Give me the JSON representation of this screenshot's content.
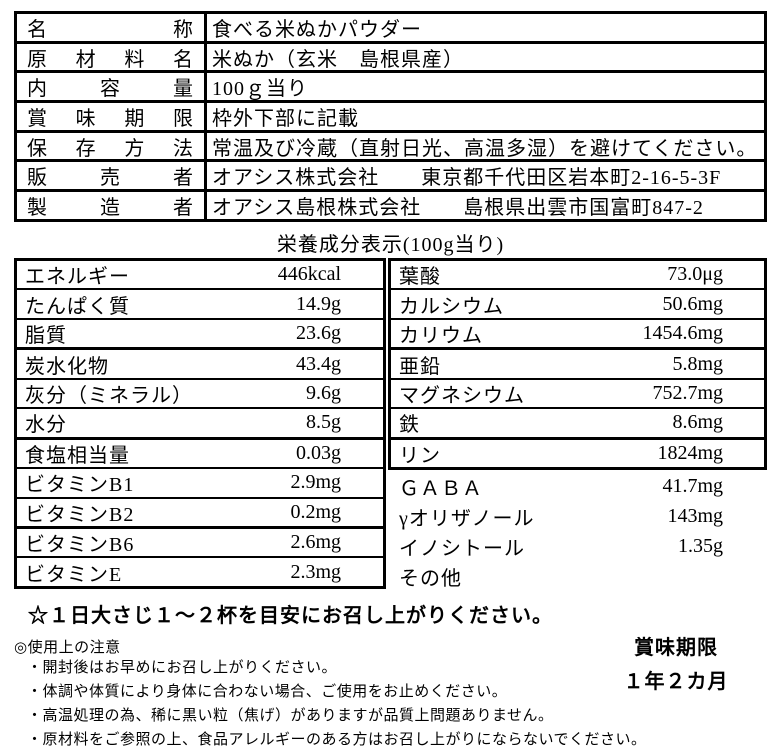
{
  "colors": {
    "ink": "#000000",
    "paper": "#ffffff"
  },
  "product_table": {
    "rows": [
      {
        "label": "名称",
        "value": "食べる米ぬかパウダー"
      },
      {
        "label": "原材料名",
        "value": "米ぬか（玄米　島根県産）"
      },
      {
        "label": "内容量",
        "value": "100ｇ当り"
      },
      {
        "label": "賞味期限",
        "value": "枠外下部に記載"
      },
      {
        "label": "保存方法",
        "value": "常温及び冷蔵（直射日光、高温多湿）を避けてください。"
      },
      {
        "label": "販売者",
        "value": "オアシス株式会社　　東京都千代田区岩本町2-16-5-3F"
      },
      {
        "label": "製造者",
        "value": "オアシス島根株式会社　　島根県出雲市国富町847-2"
      }
    ]
  },
  "nutrition": {
    "title": "栄養成分表示(100g当り)",
    "left_column": [
      {
        "name": "エネルギー",
        "value": "446kcal"
      },
      {
        "name": "たんぱく質",
        "value": "14.9g"
      },
      {
        "name": "脂質",
        "value": "23.6g"
      },
      {
        "name": "炭水化物",
        "value": "43.4g"
      },
      {
        "name": "灰分（ミネラル）",
        "value": "9.6g"
      },
      {
        "name": "水分",
        "value": "8.5g"
      },
      {
        "name": "食塩相当量",
        "value": "0.03g"
      },
      {
        "name": "ビタミンB1",
        "value": "2.9mg"
      },
      {
        "name": "ビタミンB2",
        "value": "0.2mg"
      },
      {
        "name": "ビタミンB6",
        "value": "2.6mg"
      },
      {
        "name": "ビタミンE",
        "value": "2.3mg"
      }
    ],
    "right_column_boxed": [
      {
        "name": "葉酸",
        "value": "73.0μg"
      },
      {
        "name": "カルシウム",
        "value": "50.6mg"
      },
      {
        "name": "カリウム",
        "value": "1454.6mg"
      },
      {
        "name": "亜鉛",
        "value": "5.8mg"
      },
      {
        "name": "マグネシウム",
        "value": "752.7mg"
      },
      {
        "name": "鉄",
        "value": "8.6mg"
      },
      {
        "name": "リン",
        "value": "1824mg"
      }
    ],
    "right_column_plain": [
      {
        "name": "ＧＡＢＡ",
        "value": "41.7mg"
      },
      {
        "name": "γオリザノール",
        "value": "143mg"
      },
      {
        "name": "イノシトール",
        "value": "1.35g"
      },
      {
        "name": "その他",
        "value": ""
      }
    ]
  },
  "serving_note": "☆１日大さじ１～２杯を目安にお召し上がりください。",
  "usage_notes": {
    "heading": "◎使用上の注意",
    "items": [
      "・開封後はお早めにお召し上がりください。",
      "・体調や体質により身体に合わない場合、ご使用をお止めください。",
      "・高温処理の為、稀に黒い粒（焦げ）がありますが品質上問題ありません。",
      "・原材料をご参照の上、食品アレルギーのある方はお召し上がりにならないでください。"
    ]
  },
  "expiry": {
    "label": "賞味期限",
    "value": "１年２カ月"
  }
}
